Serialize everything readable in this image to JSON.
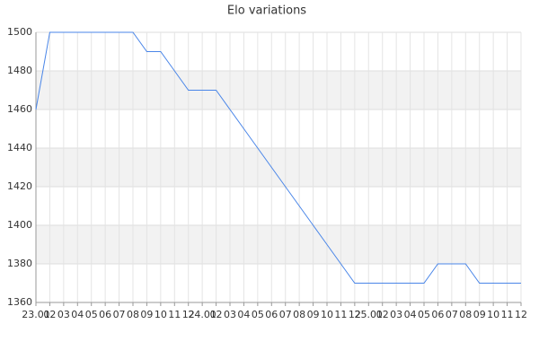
{
  "chart_data": {
    "type": "line",
    "title": "Elo variations",
    "categories": [
      "23.01",
      "02",
      "03",
      "04",
      "05",
      "06",
      "07",
      "08",
      "09",
      "10",
      "11",
      "12",
      "24.01",
      "02",
      "03",
      "04",
      "05",
      "06",
      "07",
      "08",
      "09",
      "10",
      "11",
      "12",
      "25.01",
      "02",
      "03",
      "04",
      "05",
      "06",
      "07",
      "08",
      "09",
      "10",
      "11",
      "12"
    ],
    "series": [
      {
        "name": "Elo",
        "color": "#4a86e8",
        "values": [
          1460,
          1500,
          1500,
          1500,
          1500,
          1500,
          1500,
          1500,
          1490,
          1490,
          1480,
          1470,
          1470,
          1470,
          1460,
          1450,
          1440,
          1430,
          1420,
          1410,
          1400,
          1390,
          1380,
          1370,
          1370,
          1370,
          1370,
          1370,
          1370,
          1380,
          1380,
          1380,
          1370,
          1370,
          1370,
          1370
        ]
      }
    ],
    "ylim": [
      1360,
      1500
    ],
    "yticks": [
      1360,
      1380,
      1400,
      1420,
      1440,
      1460,
      1480,
      1500
    ],
    "grid": true
  }
}
